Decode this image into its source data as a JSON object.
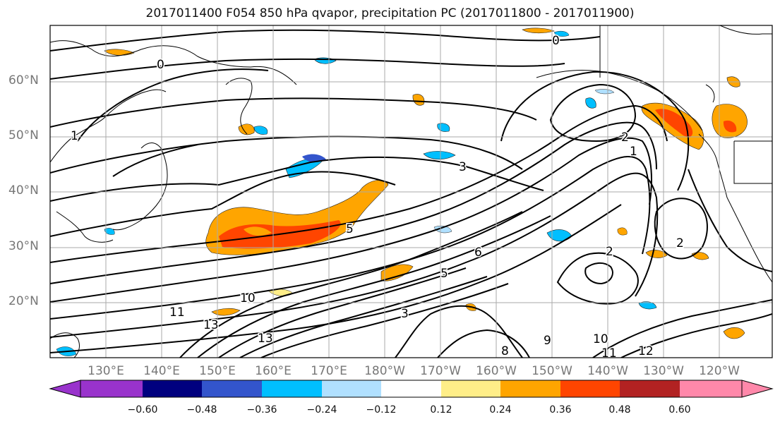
{
  "title": "2017011400 F054 850 hPa qvapor, precipitation PC (2017011800 - 2017011900)",
  "map": {
    "projection": "mercator",
    "lat_range": [
      10,
      70
    ],
    "lon_range": [
      "120E",
      "112W"
    ],
    "lat_labels": [
      "60°N",
      "50°N",
      "40°N",
      "30°N",
      "20°N"
    ],
    "lon_labels": [
      "130°E",
      "140°E",
      "150°E",
      "160°E",
      "170°E",
      "180°W",
      "170°W",
      "160°W",
      "150°W",
      "140°W",
      "130°W",
      "120°W"
    ],
    "grid": true,
    "contour_color": "#000000",
    "coastline_color": "#000000",
    "contour_labels": [
      "0",
      "0",
      "1",
      "1",
      "2",
      "2",
      "2",
      "3",
      "3",
      "5",
      "5",
      "6",
      "8",
      "9",
      "10",
      "10",
      "11",
      "11",
      "12",
      "13",
      "13"
    ]
  },
  "colorbar": {
    "colors": [
      "#9933cc",
      "#00007f",
      "#3355cc",
      "#00bfff",
      "#b0e0ff",
      "#ffffff",
      "#ffee88",
      "#ffa500",
      "#ff4500",
      "#b22222",
      "#ff88aa"
    ],
    "ticks": [
      "−0.60",
      "−0.48",
      "−0.36",
      "−0.24",
      "−0.12",
      "0.12",
      "0.24",
      "0.36",
      "0.48",
      "0.60"
    ],
    "extend": "both"
  }
}
